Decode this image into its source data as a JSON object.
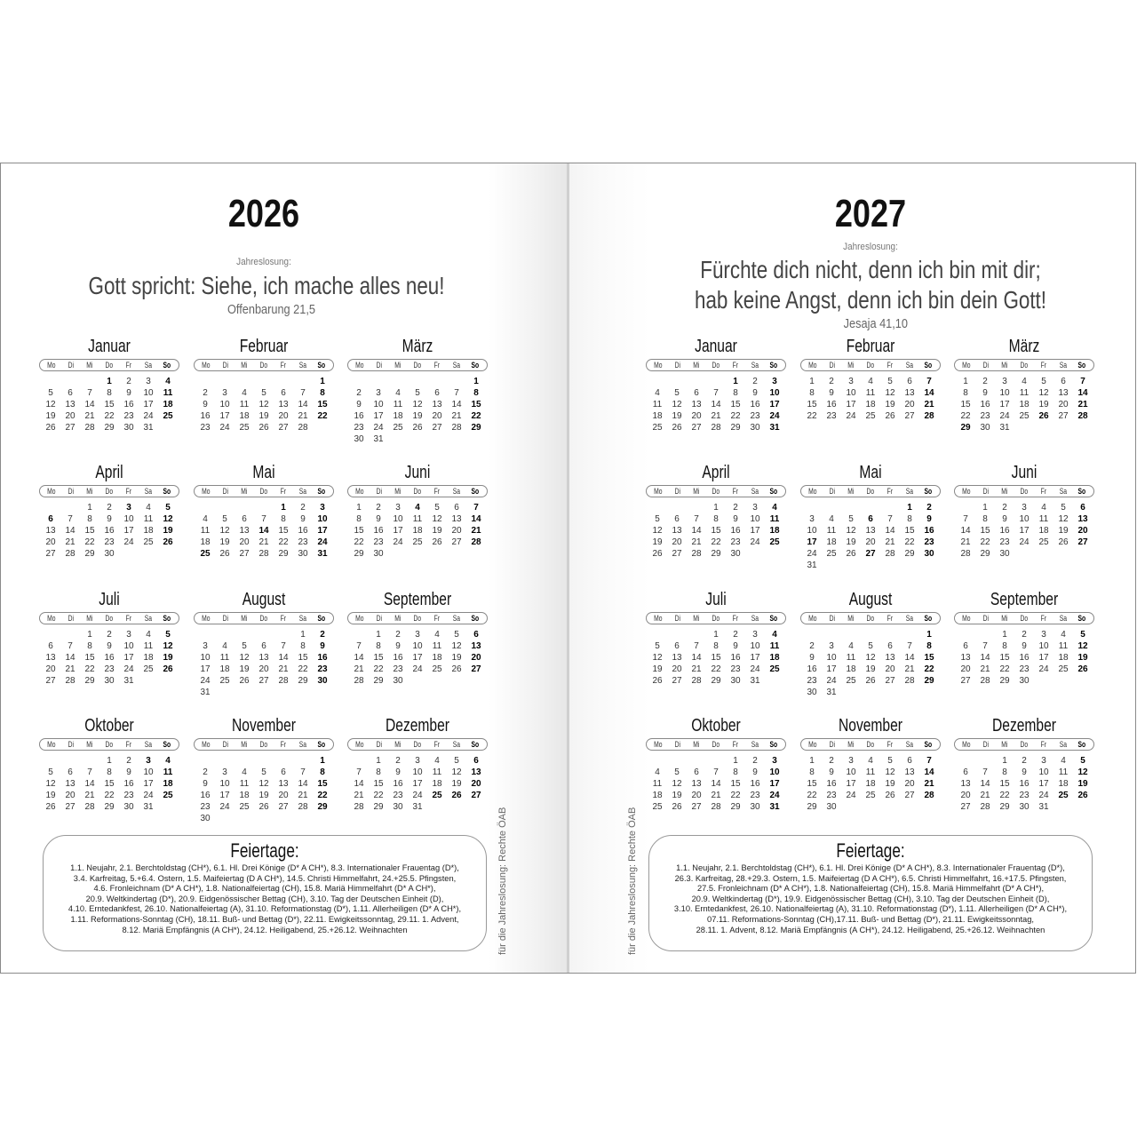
{
  "weekdays": [
    "Mo",
    "Di",
    "Mi",
    "Do",
    "Fr",
    "Sa",
    "So"
  ],
  "pages": [
    {
      "year": "2026",
      "jahreslosung_label": "Jahreslosung:",
      "quote_lines": [
        "Gott spricht: Siehe, ich mache alles neu!"
      ],
      "reference": "Offenbarung 21,5",
      "credit": "für die Jahreslosung: Rechte ÖAB",
      "feiertage_title": "Feiertage:",
      "feiertage_lines": [
        "1.1. Neujahr, 2.1. Berchtoldstag (CH*), 6.1. Hl. Drei Könige (D* A CH*), 8.3. Internationaler Frauentag (D*),",
        "3.4. Karfreitag, 5.+6.4. Ostern, 1.5. Maifeiertag (D A CH*), 14.5. Christi Himmelfahrt, 24.+25.5. Pfingsten,",
        "4.6. Fronleichnam (D* A CH*), 1.8. Nationalfeiertag (CH), 15.8. Mariä Himmelfahrt (D* A CH*),",
        "20.9. Weltkindertag (D*), 20.9. Eidgenössischer Bettag (CH), 3.10. Tag der Deutschen Einheit (D),",
        "4.10. Erntedankfest, 26.10. Nationalfeiertag (A), 31.10. Reformationstag (D*), 1.11. Allerheiligen (D* A CH*),",
        "1.11. Reformations-Sonntag (CH), 18.11. Buß- und Bettag (D*), 22.11. Ewigkeitssonntag, 29.11. 1. Advent,",
        "8.12. Mariä Empfängnis (A CH*), 24.12. Heiligabend, 25.+26.12. Weihnachten"
      ],
      "months": [
        {
          "name": "Januar",
          "first_weekday": "Do",
          "days": 31,
          "bold_days": [
            1
          ]
        },
        {
          "name": "Februar",
          "first_weekday": "So",
          "days": 28,
          "bold_days": []
        },
        {
          "name": "März",
          "first_weekday": "So",
          "days": 31,
          "bold_days": []
        },
        {
          "name": "April",
          "first_weekday": "Mi",
          "days": 30,
          "bold_days": [
            3,
            6
          ]
        },
        {
          "name": "Mai",
          "first_weekday": "Fr",
          "days": 31,
          "bold_days": [
            1,
            14,
            25
          ]
        },
        {
          "name": "Juni",
          "first_weekday": "Mo",
          "days": 30,
          "bold_days": [
            4
          ]
        },
        {
          "name": "Juli",
          "first_weekday": "Mi",
          "days": 31,
          "bold_days": []
        },
        {
          "name": "August",
          "first_weekday": "Sa",
          "days": 31,
          "bold_days": []
        },
        {
          "name": "September",
          "first_weekday": "Di",
          "days": 30,
          "bold_days": []
        },
        {
          "name": "Oktober",
          "first_weekday": "Do",
          "days": 31,
          "bold_days": [
            3
          ]
        },
        {
          "name": "November",
          "first_weekday": "So",
          "days": 30,
          "bold_days": []
        },
        {
          "name": "Dezember",
          "first_weekday": "Di",
          "days": 31,
          "bold_days": [
            25,
            26
          ]
        }
      ]
    },
    {
      "year": "2027",
      "jahreslosung_label": "Jahreslosung:",
      "quote_lines": [
        "Fürchte dich nicht, denn ich bin mit dir;",
        "hab keine Angst, denn ich bin dein Gott!"
      ],
      "reference": "Jesaja 41,10",
      "credit": "für die Jahreslosung: Rechte ÖAB",
      "feiertage_title": "Feiertage:",
      "feiertage_lines": [
        "1.1. Neujahr, 2.1. Berchtoldstag (CH*), 6.1. Hl. Drei Könige (D* A CH*), 8.3. Internationaler Frauentag (D*),",
        "26.3. Karfreitag, 28.+29.3. Ostern, 1.5. Maifeiertag (D A CH*), 6.5. Christi Himmelfahrt, 16.+17.5. Pfingsten,",
        "27.5. Fronleichnam (D* A CH*), 1.8. Nationalfeiertag (CH), 15.8. Mariä Himmelfahrt (D* A CH*),",
        "20.9. Weltkindertag (D*), 19.9. Eidgenössischer Bettag (CH), 3.10. Tag der Deutschen Einheit (D),",
        "3.10. Erntedankfest, 26.10. Nationalfeiertag (A), 31.10. Reformationstag (D*), 1.11. Allerheiligen (D* A CH*),",
        "07.11. Reformations-Sonntag (CH),17.11. Buß- und Bettag (D*), 21.11. Ewigkeitssonntag,",
        "28.11. 1. Advent, 8.12. Mariä Empfängnis (A CH*), 24.12. Heiligabend, 25.+26.12. Weihnachten"
      ],
      "months": [
        {
          "name": "Januar",
          "first_weekday": "Fr",
          "days": 31,
          "bold_days": [
            1
          ]
        },
        {
          "name": "Februar",
          "first_weekday": "Mo",
          "days": 28,
          "bold_days": []
        },
        {
          "name": "März",
          "first_weekday": "Mo",
          "days": 31,
          "bold_days": [
            26,
            29
          ]
        },
        {
          "name": "April",
          "first_weekday": "Do",
          "days": 30,
          "bold_days": []
        },
        {
          "name": "Mai",
          "first_weekday": "Sa",
          "days": 31,
          "bold_days": [
            1,
            6,
            17,
            27
          ]
        },
        {
          "name": "Juni",
          "first_weekday": "Di",
          "days": 30,
          "bold_days": []
        },
        {
          "name": "Juli",
          "first_weekday": "Do",
          "days": 31,
          "bold_days": []
        },
        {
          "name": "August",
          "first_weekday": "So",
          "days": 31,
          "bold_days": []
        },
        {
          "name": "September",
          "first_weekday": "Mi",
          "days": 30,
          "bold_days": []
        },
        {
          "name": "Oktober",
          "first_weekday": "Fr",
          "days": 31,
          "bold_days": []
        },
        {
          "name": "November",
          "first_weekday": "Mo",
          "days": 30,
          "bold_days": []
        },
        {
          "name": "Dezember",
          "first_weekday": "Mi",
          "days": 31,
          "bold_days": [
            25,
            26
          ]
        }
      ]
    }
  ]
}
